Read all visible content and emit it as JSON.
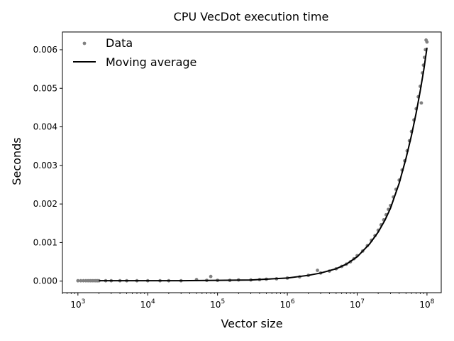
{
  "chart_data": {
    "type": "scatter",
    "title": "CPU VecDot execution time",
    "xlabel": "Vector size",
    "ylabel": "Seconds",
    "xscale": "log",
    "xlim": [
      600,
      160000000
    ],
    "ylim": [
      -0.0003,
      0.00646
    ],
    "grid": false,
    "legend_position": "top-left",
    "x_ticks": [
      {
        "value": 1000,
        "base": "10",
        "exp": "3"
      },
      {
        "value": 10000,
        "base": "10",
        "exp": "4"
      },
      {
        "value": 100000,
        "base": "10",
        "exp": "5"
      },
      {
        "value": 1000000,
        "base": "10",
        "exp": "6"
      },
      {
        "value": 10000000,
        "base": "10",
        "exp": "7"
      },
      {
        "value": 100000000,
        "base": "10",
        "exp": "8"
      }
    ],
    "y_ticks": [
      {
        "value": 0.0,
        "label": "0.000"
      },
      {
        "value": 0.001,
        "label": "0.001"
      },
      {
        "value": 0.002,
        "label": "0.002"
      },
      {
        "value": 0.003,
        "label": "0.003"
      },
      {
        "value": 0.004,
        "label": "0.004"
      },
      {
        "value": 0.005,
        "label": "0.005"
      },
      {
        "value": 0.006,
        "label": "0.006"
      }
    ],
    "series": [
      {
        "name": "Data",
        "kind": "scatter",
        "color": "#808080",
        "x": [
          1000,
          1100,
          1200,
          1300,
          1400,
          1500,
          1600,
          1700,
          1800,
          1900,
          2000,
          2500,
          3000,
          4000,
          5000,
          7000,
          10000,
          15000,
          20000,
          30000,
          50000,
          70000,
          80000,
          100000,
          150000,
          200000,
          300000,
          400000,
          500000,
          700000,
          1000000,
          1500000,
          2000000,
          2700000,
          3000000,
          4000000,
          5000000,
          6000000,
          7000000,
          8000000,
          9000000,
          10000000,
          12000000,
          14000000,
          16000000,
          18000000,
          20000000,
          22000000,
          24000000,
          26000000,
          28000000,
          30000000,
          33000000,
          36000000,
          40000000,
          44000000,
          48000000,
          52000000,
          56000000,
          60000000,
          65000000,
          70000000,
          75000000,
          80000000,
          83000000,
          86000000,
          89000000,
          92000000,
          95000000,
          97000000,
          100000000
        ],
        "y": [
          1e-05,
          1e-05,
          1e-05,
          1e-05,
          1e-05,
          1e-05,
          1e-05,
          1e-05,
          1e-05,
          1e-05,
          1e-05,
          1e-05,
          1e-05,
          1e-05,
          1e-05,
          1e-05,
          1e-05,
          1e-05,
          1e-05,
          1e-05,
          4e-05,
          2e-05,
          0.00012,
          2e-05,
          2e-05,
          3e-05,
          3e-05,
          4e-05,
          5e-05,
          6e-05,
          8e-05,
          0.00011,
          0.00015,
          0.00028,
          0.00021,
          0.00026,
          0.00032,
          0.00038,
          0.00044,
          0.0005,
          0.00058,
          0.00066,
          0.00078,
          0.00092,
          0.00106,
          0.00118,
          0.00132,
          0.00146,
          0.00159,
          0.00172,
          0.00186,
          0.00196,
          0.00218,
          0.00238,
          0.00262,
          0.00288,
          0.00312,
          0.00338,
          0.00364,
          0.00388,
          0.00418,
          0.00447,
          0.00478,
          0.00505,
          0.00462,
          0.0054,
          0.0056,
          0.0058,
          0.006,
          0.00625,
          0.0062
        ]
      },
      {
        "name": "Moving average",
        "kind": "line",
        "color": "#000000",
        "x": [
          2000,
          5000,
          10000,
          30000,
          100000,
          300000,
          1000000,
          2000000,
          3000000,
          5000000,
          7000000,
          10000000,
          15000000,
          20000000,
          25000000,
          30000000,
          40000000,
          50000000,
          60000000,
          70000000,
          80000000,
          90000000,
          100000000
        ],
        "y": [
          1e-05,
          1e-05,
          1e-05,
          1e-05,
          2e-05,
          3e-05,
          8e-05,
          0.00015,
          0.00021,
          0.00032,
          0.00044,
          0.00063,
          0.00096,
          0.00127,
          0.00158,
          0.00189,
          0.00254,
          0.00318,
          0.00378,
          0.00436,
          0.00493,
          0.00548,
          0.00605
        ]
      }
    ]
  }
}
